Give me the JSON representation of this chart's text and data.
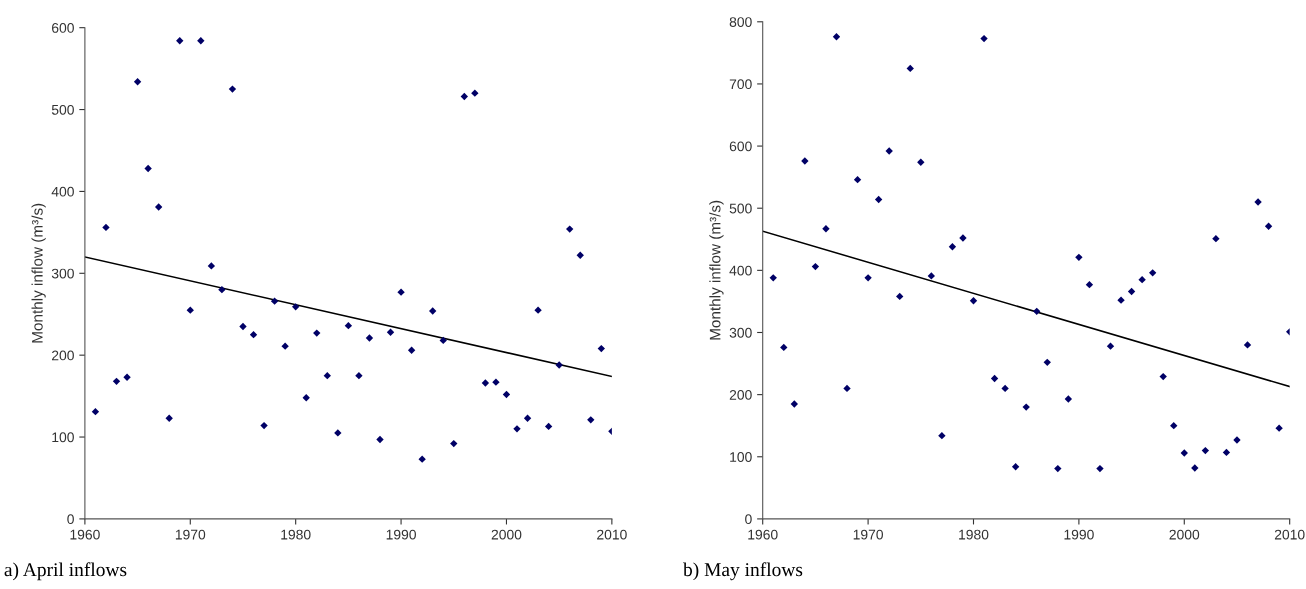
{
  "chart_data": [
    {
      "type": "scatter",
      "ylabel": "Monthly inflow (m³/s)",
      "annotations": [
        "a) April inflows"
      ],
      "xlim": [
        1960,
        2010
      ],
      "xticks": [
        1960,
        1970,
        1980,
        1990,
        2000,
        2010
      ],
      "ylim": [
        0,
        600
      ],
      "yticks": [
        0,
        100,
        200,
        300,
        400,
        500,
        600
      ],
      "grid": false,
      "legend": false,
      "series": [
        {
          "marker": "diamond",
          "color": "#000066",
          "x": [
            1961,
            1962,
            1963,
            1964,
            1965,
            1966,
            1967,
            1968,
            1969,
            1970,
            1971,
            1972,
            1973,
            1974,
            1975,
            1976,
            1977,
            1978,
            1979,
            1980,
            1981,
            1982,
            1983,
            1984,
            1985,
            1986,
            1987,
            1988,
            1989,
            1990,
            1991,
            1992,
            1993,
            1994,
            1995,
            1996,
            1997,
            1998,
            1999,
            2000,
            2001,
            2002,
            2003,
            2004,
            2005,
            2006,
            2007,
            2008,
            2009,
            2010
          ],
          "values": [
            131,
            356,
            168,
            173,
            534,
            428,
            381,
            123,
            584,
            255,
            584,
            309,
            280,
            525,
            235,
            225,
            114,
            266,
            211,
            259,
            148,
            227,
            175,
            105,
            236,
            175,
            221,
            97,
            228,
            277,
            206,
            73,
            254,
            218,
            92,
            516,
            520,
            166,
            167,
            152,
            110,
            123,
            255,
            113,
            188,
            354,
            322,
            121,
            208,
            107
          ]
        },
        {
          "type": "line",
          "marker": "none",
          "color": "#000000",
          "x": [
            1960,
            2010
          ],
          "values": [
            320,
            174
          ]
        }
      ]
    },
    {
      "type": "scatter",
      "ylabel": "Monthly inflow (m³/s)",
      "annotations": [
        "b) May inflows"
      ],
      "xlim": [
        1960,
        2010
      ],
      "xticks": [
        1960,
        1970,
        1980,
        1990,
        2000,
        2010
      ],
      "ylim": [
        0,
        800
      ],
      "yticks": [
        0,
        100,
        200,
        300,
        400,
        500,
        600,
        700,
        800
      ],
      "grid": false,
      "legend": false,
      "series": [
        {
          "marker": "diamond",
          "color": "#000066",
          "x": [
            1961,
            1962,
            1963,
            1964,
            1965,
            1966,
            1967,
            1968,
            1969,
            1970,
            1971,
            1972,
            1973,
            1974,
            1975,
            1976,
            1977,
            1978,
            1979,
            1980,
            1981,
            1982,
            1983,
            1984,
            1985,
            1986,
            1987,
            1988,
            1989,
            1990,
            1991,
            1992,
            1993,
            1994,
            1995,
            1996,
            1997,
            1998,
            1999,
            2000,
            2001,
            2002,
            2003,
            2004,
            2005,
            2006,
            2007,
            2008,
            2009,
            2010
          ],
          "values": [
            388,
            276,
            185,
            576,
            406,
            467,
            776,
            210,
            546,
            388,
            514,
            592,
            358,
            725,
            574,
            391,
            134,
            438,
            452,
            351,
            773,
            226,
            210,
            84,
            180,
            334,
            252,
            81,
            193,
            421,
            377,
            81,
            278,
            352,
            366,
            385,
            396,
            229,
            150,
            106,
            82,
            110,
            451,
            107,
            127,
            280,
            510,
            471,
            146,
            301
          ]
        },
        {
          "type": "line",
          "marker": "none",
          "color": "#000000",
          "x": [
            1960,
            2010
          ],
          "values": [
            463,
            213
          ]
        }
      ]
    }
  ]
}
